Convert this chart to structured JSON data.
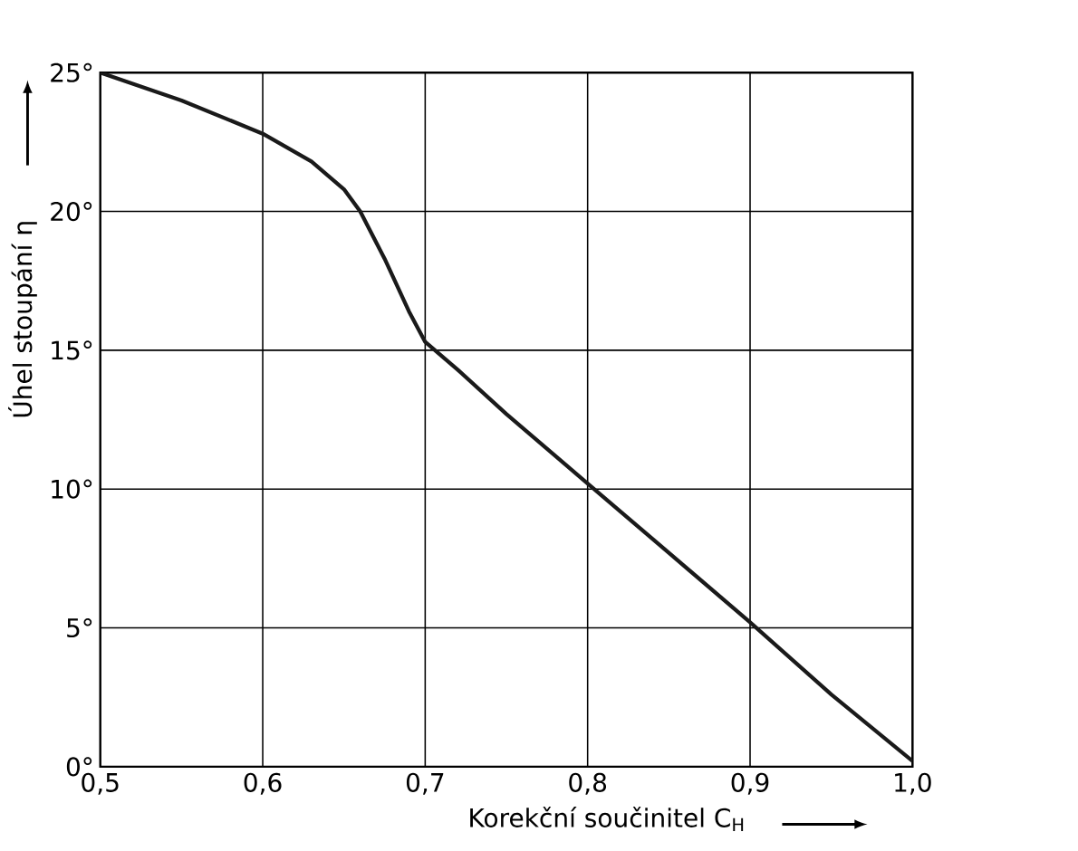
{
  "chart_data": {
    "type": "line",
    "xlabel": "Korekční součinitel C$_{H}$",
    "ylabel": "Úhel stoupání η",
    "x": [
      0.5,
      0.55,
      0.6,
      0.63,
      0.65,
      0.66,
      0.675,
      0.69,
      0.7,
      0.72,
      0.75,
      0.8,
      0.85,
      0.9,
      0.95,
      1.0
    ],
    "series": [
      {
        "color": "#1a1a1a",
        "values": [
          25,
          24,
          22.8,
          21.8,
          20.8,
          20,
          18.3,
          16.4,
          15.3,
          14.3,
          12.7,
          10.2,
          7.7,
          5.2,
          2.6,
          0.2
        ]
      }
    ],
    "xlim": [
      0.5,
      1.0
    ],
    "ylim": [
      0,
      25
    ],
    "xticks": [
      {
        "value": 0.5,
        "label": "0,5"
      },
      {
        "value": 0.6,
        "label": "0,6"
      },
      {
        "value": 0.7,
        "label": "0,7"
      },
      {
        "value": 0.8,
        "label": "0,8"
      },
      {
        "value": 0.9,
        "label": "0,9"
      },
      {
        "value": 1.0,
        "label": "1,0"
      }
    ],
    "yticks": [
      {
        "value": 0,
        "label": "0°"
      },
      {
        "value": 5,
        "label": "5°"
      },
      {
        "value": 10,
        "label": "10°"
      },
      {
        "value": 15,
        "label": "15°"
      },
      {
        "value": 20,
        "label": "20°"
      },
      {
        "value": 25,
        "label": "25°"
      }
    ],
    "grid": true,
    "marker": "none",
    "line_style": "solid"
  }
}
